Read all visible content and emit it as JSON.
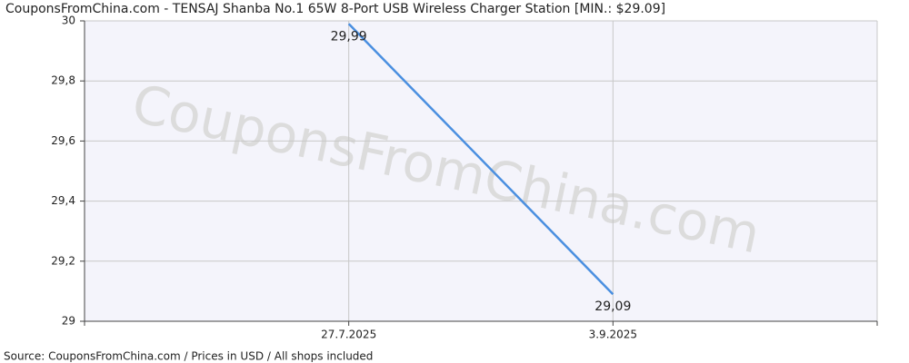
{
  "chart_data": {
    "type": "line",
    "title": "CouponsFromChina.com - TENSAJ Shanba No.1 65W 8-Port USB Wireless Charger Station [MIN.: $29.09]",
    "watermark": "CouponsFromChina.com",
    "source": "Source: CouponsFromChina.com / Prices in USD / All shops included",
    "categories": [
      null,
      "27.7.2025",
      "3.9.2025",
      null
    ],
    "values": [
      null,
      29.99,
      29.09,
      null
    ],
    "value_labels": [
      null,
      "29,99",
      "29,09",
      null
    ],
    "color": "#4a8fe0",
    "ylim": [
      29,
      30
    ],
    "yticks": [
      29,
      {
        "value": 29.2,
        "label": "29,2"
      },
      {
        "value": 29.4,
        "label": "29,4"
      },
      {
        "value": 29.6,
        "label": "29,6"
      },
      {
        "value": 29.8,
        "label": "29,8"
      },
      30
    ],
    "grid": true
  }
}
